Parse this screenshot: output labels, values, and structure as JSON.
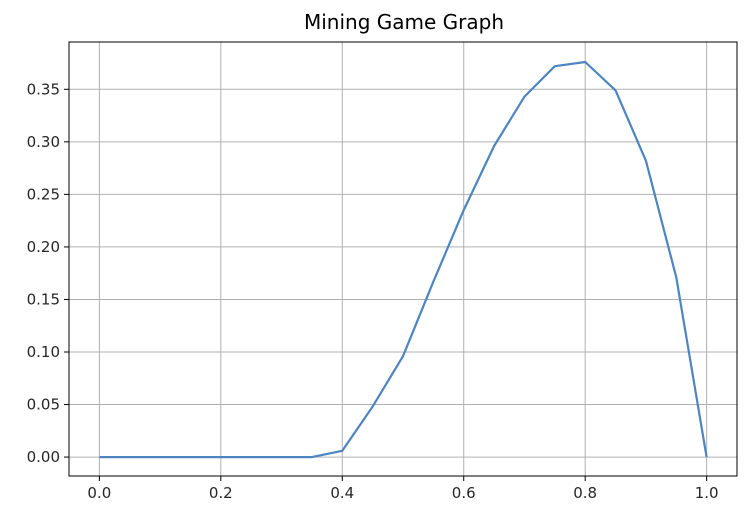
{
  "chart_data": {
    "type": "line",
    "title": "Mining Game Graph",
    "xlabel": "",
    "ylabel": "",
    "xlim": [
      -0.05,
      1.05
    ],
    "ylim": [
      -0.018,
      0.395
    ],
    "x_ticks": [
      0.0,
      0.2,
      0.4,
      0.6,
      0.8,
      1.0
    ],
    "x_tick_labels": [
      "0.0",
      "0.2",
      "0.4",
      "0.6",
      "0.8",
      "1.0"
    ],
    "y_ticks": [
      0.0,
      0.05,
      0.1,
      0.15,
      0.2,
      0.25,
      0.3,
      0.35
    ],
    "y_tick_labels": [
      "0.00",
      "0.05",
      "0.10",
      "0.15",
      "0.20",
      "0.25",
      "0.30",
      "0.35"
    ],
    "grid": true,
    "series": [
      {
        "color": "#4e85c0",
        "x": [
          0.0,
          0.05,
          0.1,
          0.15,
          0.2,
          0.25,
          0.3,
          0.35,
          0.4,
          0.45,
          0.5,
          0.55,
          0.6,
          0.65,
          0.7,
          0.75,
          0.8,
          0.85,
          0.9,
          0.95,
          1.0
        ],
        "y": [
          0.0,
          0.0,
          0.0,
          0.0,
          0.0,
          0.0,
          0.0,
          0.0,
          0.006,
          0.048,
          0.096,
          0.167,
          0.235,
          0.296,
          0.343,
          0.372,
          0.376,
          0.349,
          0.282,
          0.171,
          0.0
        ]
      }
    ]
  }
}
